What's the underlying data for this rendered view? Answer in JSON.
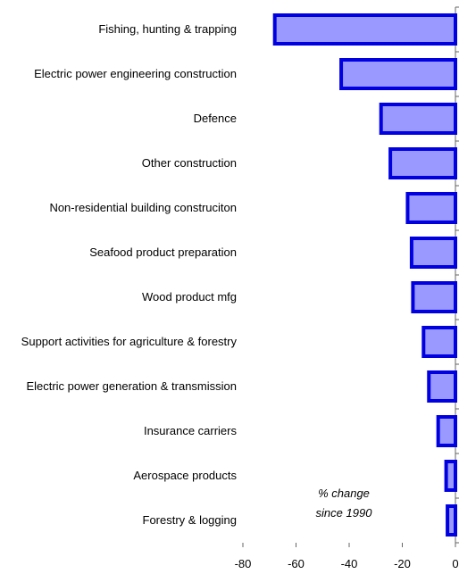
{
  "chart_data": {
    "type": "barh",
    "categories": [
      "Fishing, hunting & trapping",
      "Electric power engineering construction",
      "Defence",
      "Other construction",
      "Non-residential building construciton",
      "Seafood product preparation",
      "Wood product mfg",
      "Support activities for agriculture & forestry",
      "Electric power generation & transmission",
      "Insurance carriers",
      "Aerospace products",
      "Forestry & logging"
    ],
    "values": [
      -68,
      -43,
      -28,
      -24.5,
      -18,
      -16.5,
      -16,
      -12,
      -10,
      -6.5,
      -3.5,
      -3
    ],
    "color": "#9999ff",
    "edge_color": "#0000e0",
    "xlim": [
      -80,
      0
    ],
    "xticks": [
      -80,
      -60,
      -40,
      -20,
      0
    ],
    "annotation": [
      "% change",
      "since 1990"
    ]
  }
}
